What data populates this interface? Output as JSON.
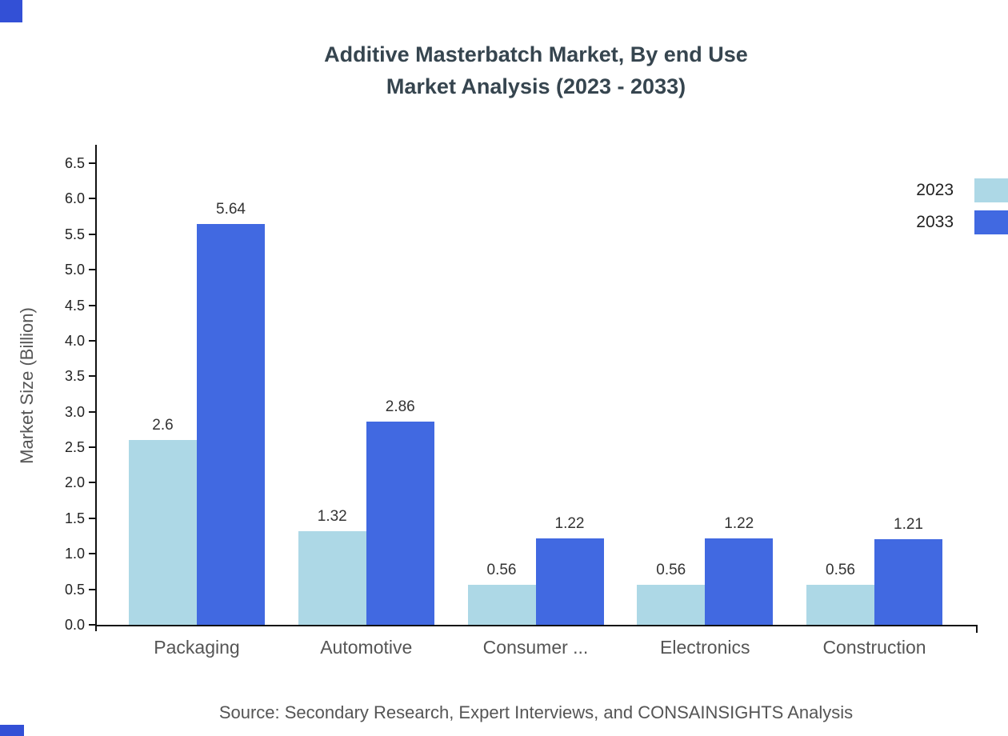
{
  "title": {
    "line1": "Additive Masterbatch Market, By end Use",
    "line2": "Market Analysis (2023 - 2033)"
  },
  "source": "Source: Secondary Research, Expert Interviews, and CONSAINSIGHTS Analysis",
  "colors": {
    "corner_mark": "#3350d6",
    "axis": "#111111",
    "title_text": "#36454f",
    "series_2023": "#ADD8E6",
    "series_2033": "#4169E1"
  },
  "chart_data": {
    "type": "bar",
    "title": "Additive Masterbatch Market, By end Use Market Analysis (2023 - 2033)",
    "categories": [
      "Packaging",
      "Automotive",
      "Consumer ...",
      "Electronics",
      "Construction"
    ],
    "series": [
      {
        "name": "2023",
        "color": "#ADD8E6",
        "values": [
          2.6,
          1.32,
          0.56,
          0.56,
          0.56
        ]
      },
      {
        "name": "2033",
        "color": "#4169E1",
        "values": [
          5.64,
          2.86,
          1.22,
          1.22,
          1.21
        ]
      }
    ],
    "xlabel": "",
    "ylabel": "Market Size (Billion)",
    "ylim": [
      0,
      6.5
    ],
    "ytick_step": 0.5,
    "grid": false,
    "legend_position": "top-right"
  }
}
